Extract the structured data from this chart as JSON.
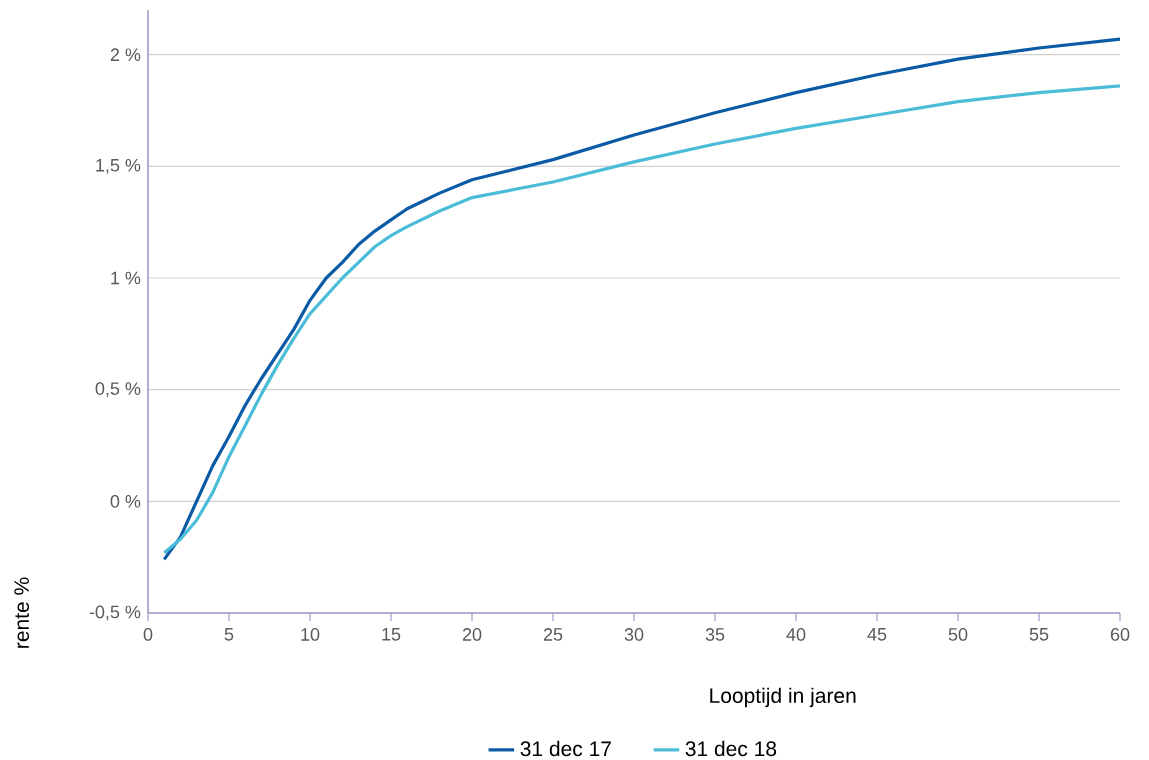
{
  "chart_data": {
    "type": "line",
    "xlabel": "Looptijd in jaren",
    "ylabel": "rente %",
    "x": [
      1,
      2,
      3,
      4,
      5,
      6,
      7,
      8,
      9,
      10,
      11,
      12,
      13,
      14,
      15,
      16,
      18,
      20,
      25,
      30,
      35,
      40,
      45,
      50,
      55,
      60
    ],
    "series": [
      {
        "name": "31 dec 17",
        "color": "#0a5aa5",
        "values": [
          -0.26,
          -0.16,
          0.0,
          0.16,
          0.29,
          0.43,
          0.55,
          0.66,
          0.77,
          0.9,
          1.0,
          1.07,
          1.15,
          1.21,
          1.26,
          1.31,
          1.38,
          1.44,
          1.53,
          1.64,
          1.74,
          1.83,
          1.91,
          1.98,
          2.03,
          2.07
        ]
      },
      {
        "name": "31 dec 18",
        "color": "#4bbcd8",
        "values": [
          -0.23,
          -0.17,
          -0.085,
          0.04,
          0.2,
          0.34,
          0.48,
          0.61,
          0.73,
          0.84,
          0.92,
          1.0,
          1.07,
          1.14,
          1.19,
          1.23,
          1.3,
          1.36,
          1.43,
          1.52,
          1.6,
          1.67,
          1.73,
          1.79,
          1.83,
          1.86
        ]
      }
    ],
    "xlim": [
      0,
      60
    ],
    "ylim": [
      -0.5,
      2.2
    ],
    "xticks": [
      0,
      5,
      10,
      15,
      20,
      25,
      30,
      35,
      40,
      45,
      50,
      55,
      60
    ],
    "yticks": [
      {
        "value": -0.5,
        "label": "-0,5 %"
      },
      {
        "value": 0,
        "label": "0 %"
      },
      {
        "value": 0.5,
        "label": "0,5 %"
      },
      {
        "value": 1,
        "label": "1 %"
      },
      {
        "value": 1.5,
        "label": "1,5 %"
      },
      {
        "value": 2,
        "label": "2 %"
      }
    ],
    "grid": "y",
    "legend": "bottom",
    "line_style": "solid"
  }
}
